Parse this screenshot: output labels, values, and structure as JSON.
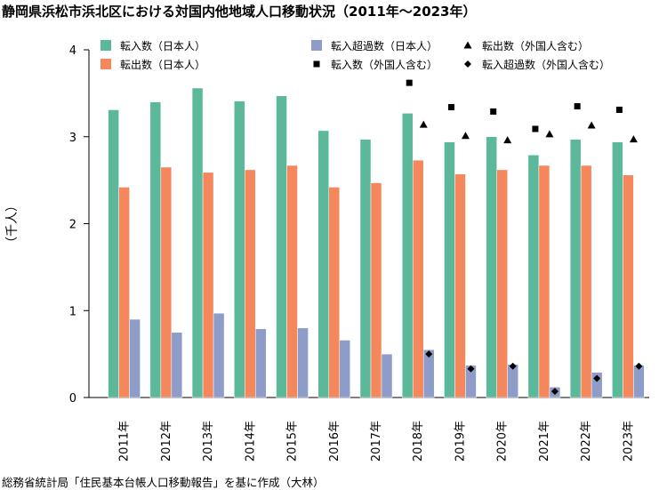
{
  "title": "静岡県浜松市浜北区における対国内他地域人口移動状況（2011年～2023年）",
  "source": "総務省統計局「住民基本台帳人口移動報告」を基に作成（大林）",
  "colors": {
    "in_japanese": "#5bb89a",
    "out_japanese": "#f5875c",
    "net_in_japanese": "#8e9cc9",
    "marker": "#000000"
  },
  "chart_data": {
    "type": "bar",
    "title": "静岡県浜松市浜北区における対国内他地域人口移動状況（2011年～2023年）",
    "ylabel": "（千人）",
    "xlabel": "",
    "ylim": [
      0,
      4
    ],
    "yticks": [
      0,
      1,
      2,
      3,
      4
    ],
    "grid": false,
    "legend_position": "top",
    "categories": [
      "2011年",
      "2012年",
      "2013年",
      "2014年",
      "2015年",
      "2016年",
      "2017年",
      "2018年",
      "2019年",
      "2020年",
      "2021年",
      "2022年",
      "2023年"
    ],
    "series": [
      {
        "name": "転入数（日本人）",
        "kind": "bar",
        "color": "#5bb89a",
        "values": [
          3.31,
          3.4,
          3.56,
          3.41,
          3.47,
          3.07,
          2.97,
          3.27,
          2.94,
          3.0,
          2.79,
          2.97,
          2.94
        ]
      },
      {
        "name": "転出数（日本人）",
        "kind": "bar",
        "color": "#f5875c",
        "values": [
          2.42,
          2.65,
          2.59,
          2.62,
          2.67,
          2.42,
          2.47,
          2.73,
          2.57,
          2.62,
          2.67,
          2.67,
          2.56
        ]
      },
      {
        "name": "転入超過数（日本人）",
        "kind": "bar",
        "color": "#8e9cc9",
        "values": [
          0.9,
          0.75,
          0.97,
          0.79,
          0.8,
          0.66,
          0.5,
          0.55,
          0.37,
          0.38,
          0.12,
          0.29,
          0.37
        ]
      },
      {
        "name": "転出数（外国人含む）",
        "kind": "marker",
        "marker": "triangle",
        "values": [
          null,
          null,
          null,
          null,
          null,
          null,
          null,
          3.14,
          3.01,
          2.96,
          3.03,
          3.13,
          2.97
        ]
      },
      {
        "name": "転入数（外国人含む）",
        "kind": "marker",
        "marker": "square",
        "values": [
          null,
          null,
          null,
          null,
          null,
          null,
          null,
          3.62,
          3.34,
          3.29,
          3.09,
          3.35,
          3.31
        ]
      },
      {
        "name": "転入超過数（外国人含む）",
        "kind": "marker",
        "marker": "diamond",
        "values": [
          null,
          null,
          null,
          null,
          null,
          null,
          null,
          0.5,
          0.33,
          0.36,
          0.07,
          0.22,
          0.36
        ]
      }
    ]
  }
}
